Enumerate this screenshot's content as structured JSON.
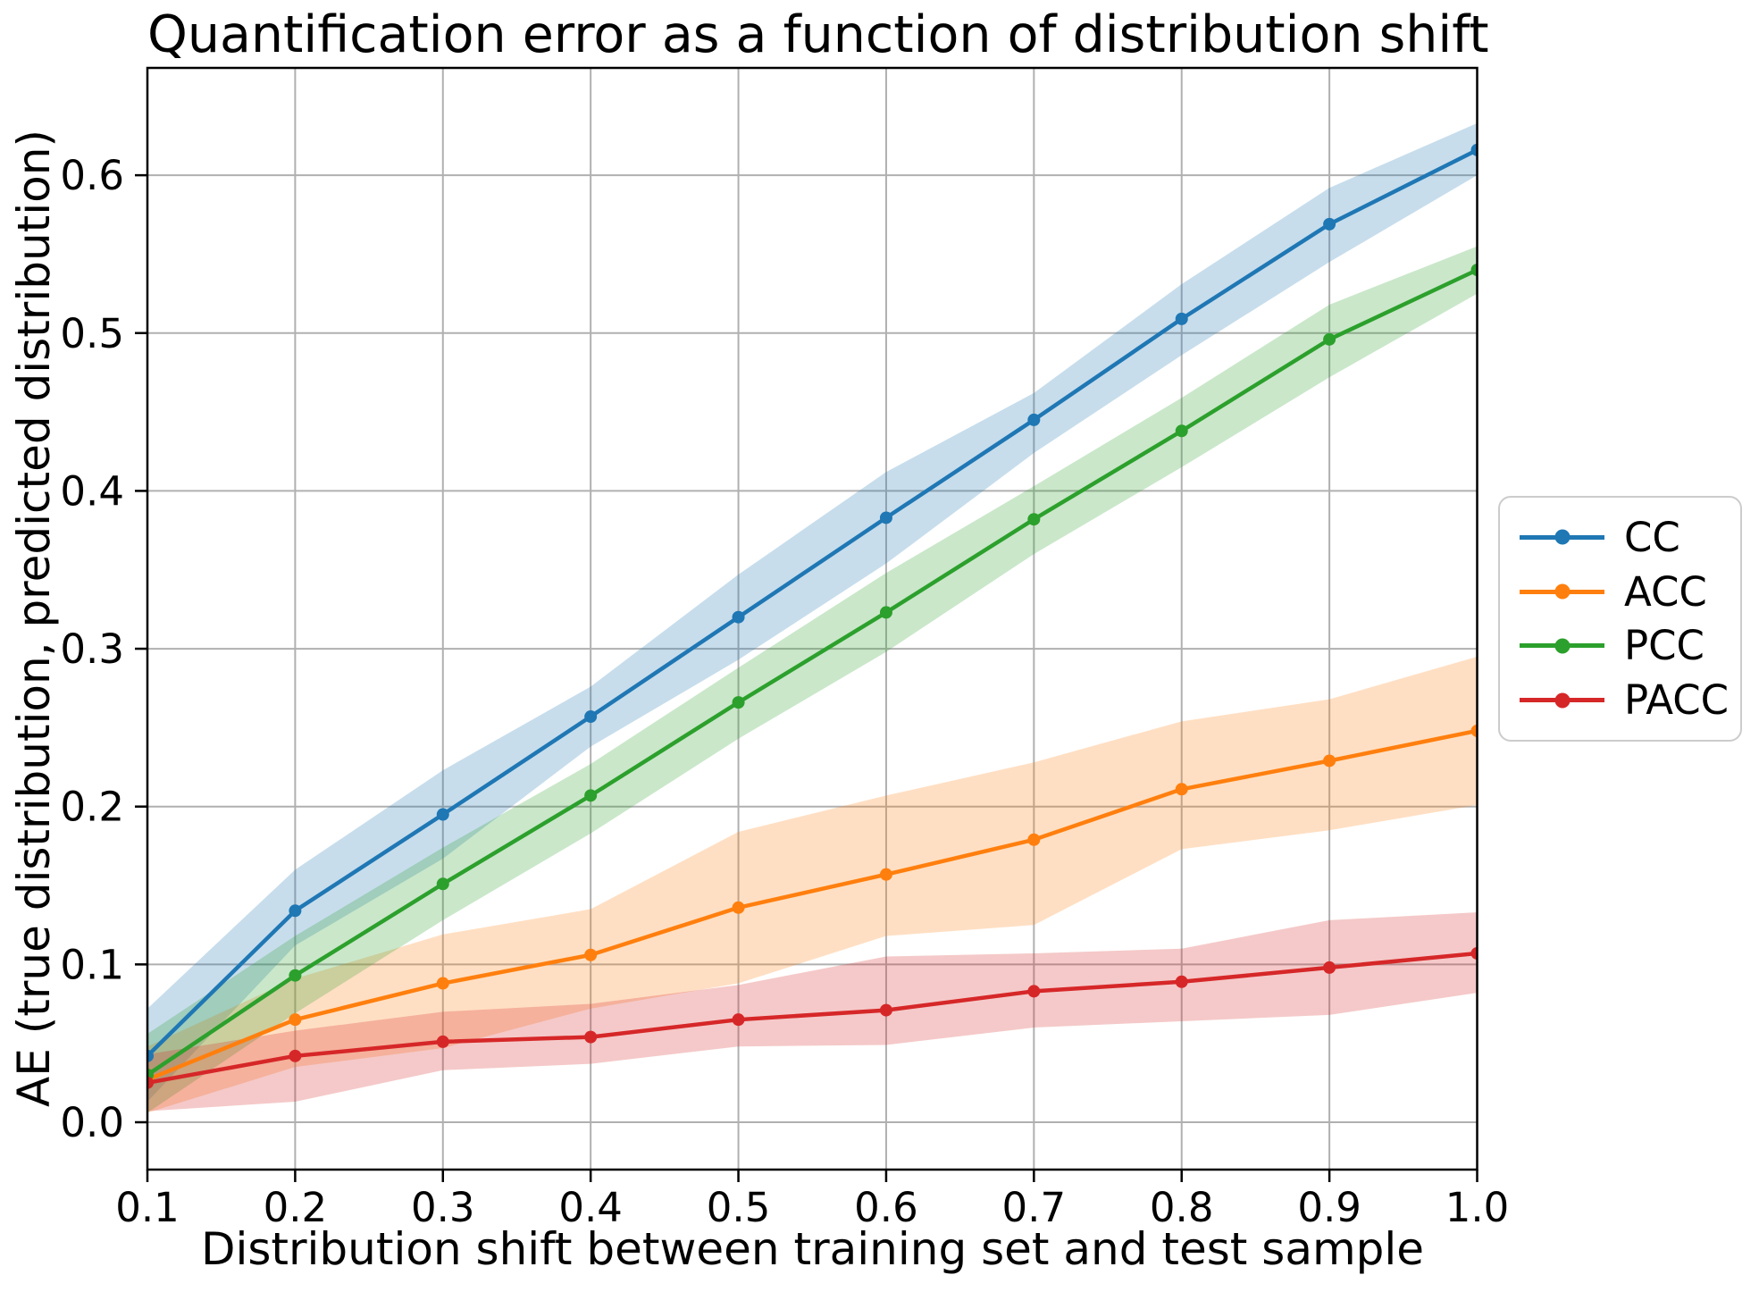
{
  "chart_data": {
    "type": "line",
    "title": "Quantification error as a function of distribution shift",
    "xlabel": "Distribution shift between training set and test sample",
    "ylabel": "AE (true distribution, predicted distribution)",
    "x": [
      0.1,
      0.2,
      0.3,
      0.4,
      0.5,
      0.6,
      0.7,
      0.8,
      0.9,
      1.0
    ],
    "x_ticks": [
      "0.1",
      "0.2",
      "0.3",
      "0.4",
      "0.5",
      "0.6",
      "0.7",
      "0.8",
      "0.9",
      "1.0"
    ],
    "y_ticks": [
      "0.0",
      "0.1",
      "0.2",
      "0.3",
      "0.4",
      "0.5",
      "0.6"
    ],
    "xlim": [
      0.1,
      1.0
    ],
    "ylim": [
      -0.03,
      0.668
    ],
    "grid": true,
    "grid_color": "#b0b0b0",
    "band_alpha": 0.25,
    "marker": "circle",
    "legend_position": "outside-right",
    "series": [
      {
        "name": "CC",
        "color": "#1f77b4",
        "values": [
          0.042,
          0.134,
          0.195,
          0.257,
          0.32,
          0.383,
          0.445,
          0.509,
          0.569,
          0.616
        ],
        "band_lower": [
          0.013,
          0.112,
          0.167,
          0.238,
          0.293,
          0.354,
          0.424,
          0.486,
          0.545,
          0.6
        ],
        "band_upper": [
          0.072,
          0.16,
          0.223,
          0.276,
          0.347,
          0.412,
          0.462,
          0.531,
          0.592,
          0.633
        ]
      },
      {
        "name": "ACC",
        "color": "#ff7f0e",
        "values": [
          0.027,
          0.065,
          0.088,
          0.106,
          0.136,
          0.157,
          0.179,
          0.211,
          0.229,
          0.248
        ],
        "band_lower": [
          0.006,
          0.035,
          0.047,
          0.072,
          0.088,
          0.118,
          0.125,
          0.173,
          0.185,
          0.201
        ],
        "band_upper": [
          0.048,
          0.091,
          0.119,
          0.135,
          0.184,
          0.207,
          0.228,
          0.254,
          0.268,
          0.295
        ]
      },
      {
        "name": "PCC",
        "color": "#2ca02c",
        "values": [
          0.03,
          0.093,
          0.151,
          0.207,
          0.266,
          0.323,
          0.382,
          0.438,
          0.496,
          0.54
        ],
        "band_lower": [
          0.006,
          0.069,
          0.128,
          0.183,
          0.243,
          0.298,
          0.36,
          0.415,
          0.472,
          0.525
        ],
        "band_upper": [
          0.056,
          0.118,
          0.174,
          0.227,
          0.288,
          0.348,
          0.403,
          0.459,
          0.518,
          0.555
        ]
      },
      {
        "name": "PACC",
        "color": "#d62728",
        "values": [
          0.025,
          0.042,
          0.051,
          0.054,
          0.065,
          0.071,
          0.083,
          0.089,
          0.098,
          0.107
        ],
        "band_lower": [
          0.007,
          0.013,
          0.033,
          0.037,
          0.048,
          0.049,
          0.06,
          0.064,
          0.068,
          0.082
        ],
        "band_upper": [
          0.043,
          0.058,
          0.07,
          0.075,
          0.087,
          0.105,
          0.107,
          0.11,
          0.128,
          0.133
        ]
      }
    ]
  }
}
